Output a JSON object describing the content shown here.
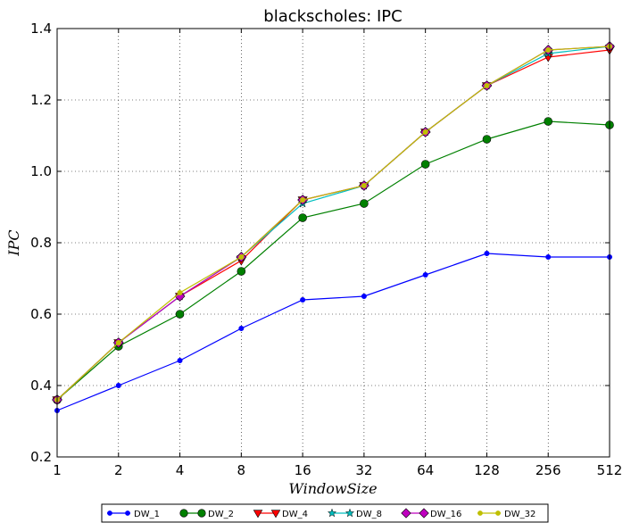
{
  "chart_data": {
    "type": "line",
    "title": "blackscholes: IPC",
    "xlabel": "WindowSize",
    "ylabel": "IPC",
    "categories": [
      "1",
      "2",
      "4",
      "8",
      "16",
      "32",
      "64",
      "128",
      "256",
      "512"
    ],
    "ylim": [
      0.2,
      1.4
    ],
    "yticks": [
      "0.2",
      "0.4",
      "0.6",
      "0.8",
      "1.0",
      "1.2",
      "1.4"
    ],
    "grid": true,
    "legend_position": "bottom",
    "series": [
      {
        "name": "DW_1",
        "color": "#0000ff",
        "marker": "point",
        "values": [
          0.33,
          0.4,
          0.47,
          0.56,
          0.64,
          0.65,
          0.71,
          0.77,
          0.76,
          0.76
        ]
      },
      {
        "name": "DW_2",
        "color": "#008000",
        "marker": "circle",
        "values": [
          0.36,
          0.51,
          0.6,
          0.72,
          0.87,
          0.91,
          1.02,
          1.09,
          1.14,
          1.13
        ]
      },
      {
        "name": "DW_4",
        "color": "#ff0000",
        "marker": "triangle",
        "values": [
          0.36,
          0.52,
          0.65,
          0.75,
          0.92,
          0.96,
          1.11,
          1.24,
          1.32,
          1.34
        ]
      },
      {
        "name": "DW_8",
        "color": "#00bfbf",
        "marker": "star",
        "values": [
          0.36,
          0.52,
          0.65,
          0.76,
          0.91,
          0.96,
          1.11,
          1.24,
          1.33,
          1.35
        ]
      },
      {
        "name": "DW_16",
        "color": "#bf00bf",
        "marker": "diamond",
        "values": [
          0.36,
          0.52,
          0.65,
          0.76,
          0.92,
          0.96,
          1.11,
          1.24,
          1.34,
          1.35
        ]
      },
      {
        "name": "DW_32",
        "color": "#bfbf00",
        "marker": "point",
        "values": [
          0.36,
          0.52,
          0.66,
          0.76,
          0.92,
          0.96,
          1.11,
          1.24,
          1.34,
          1.35
        ]
      }
    ]
  }
}
